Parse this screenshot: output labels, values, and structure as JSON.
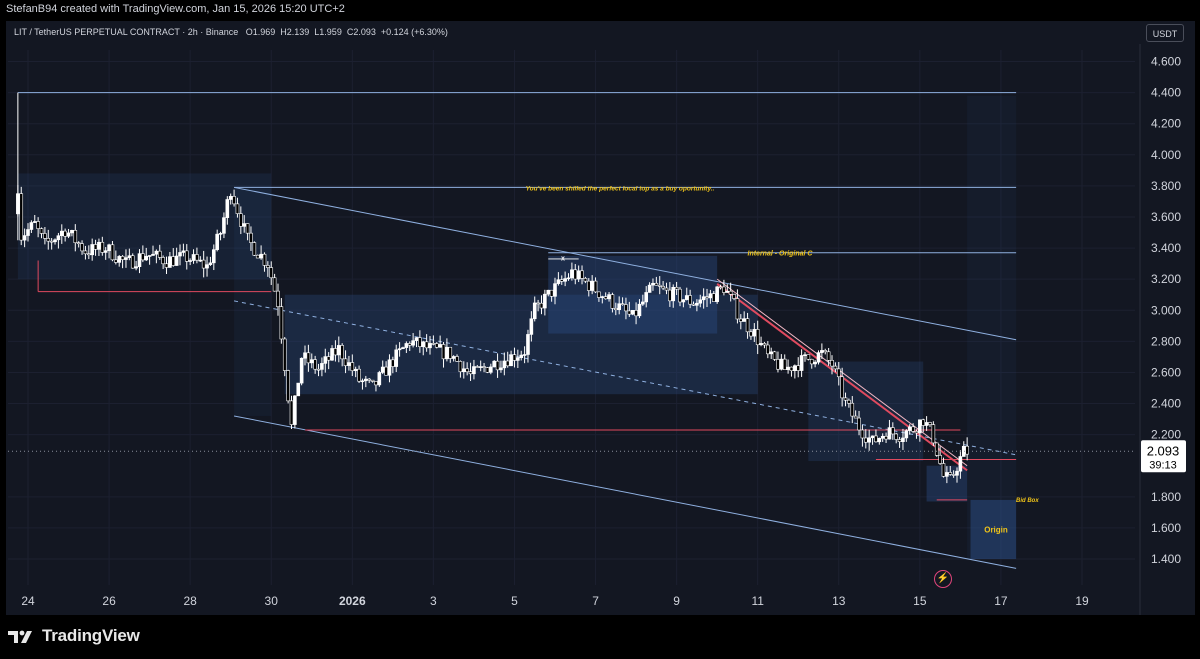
{
  "credit": "StefanB94 created with TradingView.com, Jan 15, 2026 15:20 UTC+2",
  "symbol_info": "LIT / TetherUS PERPETUAL CONTRACT · 2h · Binance   O1.969  H2.139  L1.959  C2.093  +0.124 (+6.30%)",
  "unit_badge": "USDT",
  "brand": "TradingView",
  "icons": {
    "brand_logo": "tradingview-logo-icon",
    "alert": "lightning-icon"
  },
  "colors": {
    "background": "#131722",
    "candle_up": "#ffffff",
    "candle_down": "#000000",
    "zone": "#2a4a7f",
    "channel": "#8fb0e0",
    "red_line": "#e04a5f",
    "annotation": "#f0c419"
  },
  "chart_data": {
    "type": "candlestick",
    "x_unit": "date",
    "ylim": [
      1.28,
      4.72
    ],
    "y_ticks": [
      "4.600",
      "4.400",
      "4.200",
      "4.000",
      "3.800",
      "3.600",
      "3.400",
      "3.200",
      "3.000",
      "2.800",
      "2.600",
      "2.400",
      "2.200",
      "1.800",
      "1.600",
      "1.400"
    ],
    "x_ticks": [
      {
        "label": "24",
        "date": "2025-12-24"
      },
      {
        "label": "26",
        "date": "2025-12-26"
      },
      {
        "label": "28",
        "date": "2025-12-28"
      },
      {
        "label": "30",
        "date": "2025-12-30"
      },
      {
        "label": "2026",
        "date": "2026-01-01"
      },
      {
        "label": "3",
        "date": "2026-01-03"
      },
      {
        "label": "5",
        "date": "2026-01-05"
      },
      {
        "label": "7",
        "date": "2026-01-07"
      },
      {
        "label": "9",
        "date": "2026-01-09"
      },
      {
        "label": "11",
        "date": "2026-01-11"
      },
      {
        "label": "13",
        "date": "2026-01-13"
      },
      {
        "label": "15",
        "date": "2026-01-15"
      },
      {
        "label": "17",
        "date": "2026-01-17"
      },
      {
        "label": "19",
        "date": "2026-01-19"
      }
    ],
    "last_price": "2.093",
    "countdown": "39:13",
    "price_path": [
      [
        "2025-12-23 18:00",
        3.62
      ],
      [
        "2025-12-23 20:00",
        3.8
      ],
      [
        "2025-12-23 22:00",
        3.48
      ],
      [
        "2025-12-24 06:00",
        3.55
      ],
      [
        "2025-12-24 12:00",
        3.42
      ],
      [
        "2025-12-25 00:00",
        3.52
      ],
      [
        "2025-12-25 12:00",
        3.38
      ],
      [
        "2025-12-26 00:00",
        3.4
      ],
      [
        "2025-12-26 12:00",
        3.3
      ],
      [
        "2025-12-27 00:00",
        3.36
      ],
      [
        "2025-12-27 12:00",
        3.32
      ],
      [
        "2025-12-28 00:00",
        3.34
      ],
      [
        "2025-12-28 12:00",
        3.28
      ],
      [
        "2025-12-28 20:00",
        3.5
      ],
      [
        "2025-12-29 02:00",
        3.78
      ],
      [
        "2025-12-29 12:00",
        3.45
      ],
      [
        "2025-12-30 00:00",
        3.3
      ],
      [
        "2025-12-30 06:00",
        3.05
      ],
      [
        "2025-12-30 14:00",
        2.25
      ],
      [
        "2025-12-30 20:00",
        2.7
      ],
      [
        "2025-12-31 06:00",
        2.62
      ],
      [
        "2025-12-31 18:00",
        2.75
      ],
      [
        "2026-01-01 06:00",
        2.55
      ],
      [
        "2026-01-01 14:00",
        2.5
      ],
      [
        "2026-01-02 00:00",
        2.65
      ],
      [
        "2026-01-02 12:00",
        2.8
      ],
      [
        "2026-01-03 00:00",
        2.75
      ],
      [
        "2026-01-03 12:00",
        2.72
      ],
      [
        "2026-01-04 00:00",
        2.58
      ],
      [
        "2026-01-04 12:00",
        2.65
      ],
      [
        "2026-01-05 00:00",
        2.7
      ],
      [
        "2026-01-05 08:00",
        2.74
      ],
      [
        "2026-01-05 14:00",
        3.0
      ],
      [
        "2026-01-06 00:00",
        3.12
      ],
      [
        "2026-01-06 12:00",
        3.24
      ],
      [
        "2026-01-07 00:00",
        3.15
      ],
      [
        "2026-01-07 12:00",
        3.05
      ],
      [
        "2026-01-08 00:00",
        2.95
      ],
      [
        "2026-01-08 12:00",
        3.15
      ],
      [
        "2026-01-09 00:00",
        3.1
      ],
      [
        "2026-01-09 12:00",
        3.05
      ],
      [
        "2026-01-10 00:00",
        3.1
      ],
      [
        "2026-01-10 06:00",
        3.15
      ],
      [
        "2026-01-10 16:00",
        2.95
      ],
      [
        "2026-01-11 00:00",
        2.85
      ],
      [
        "2026-01-11 08:00",
        2.7
      ],
      [
        "2026-01-11 18:00",
        2.62
      ],
      [
        "2026-01-12 06:00",
        2.68
      ],
      [
        "2026-01-12 16:00",
        2.72
      ],
      [
        "2026-01-12 22:00",
        2.65
      ],
      [
        "2026-01-13 06:00",
        2.4
      ],
      [
        "2026-01-13 14:00",
        2.25
      ],
      [
        "2026-01-13 22:00",
        2.15
      ],
      [
        "2026-01-14 06:00",
        2.22
      ],
      [
        "2026-01-14 14:00",
        2.2
      ],
      [
        "2026-01-14 22:00",
        2.24
      ],
      [
        "2026-01-15 04:00",
        2.3
      ],
      [
        "2026-01-15 10:00",
        2.18
      ],
      [
        "2026-01-15 16:00",
        1.93
      ],
      [
        "2026-01-15 20:00",
        1.9
      ],
      [
        "2026-01-16 00:00",
        2.0
      ],
      [
        "2026-01-16 04:00",
        2.09
      ]
    ],
    "annotations": {
      "top_note": "You've been shilled the perfect local top as a buy oportunity..",
      "internal_label": "Internal - Original C",
      "bid_box": "Bid Box",
      "origin": "Origin",
      "marker": "x"
    }
  }
}
